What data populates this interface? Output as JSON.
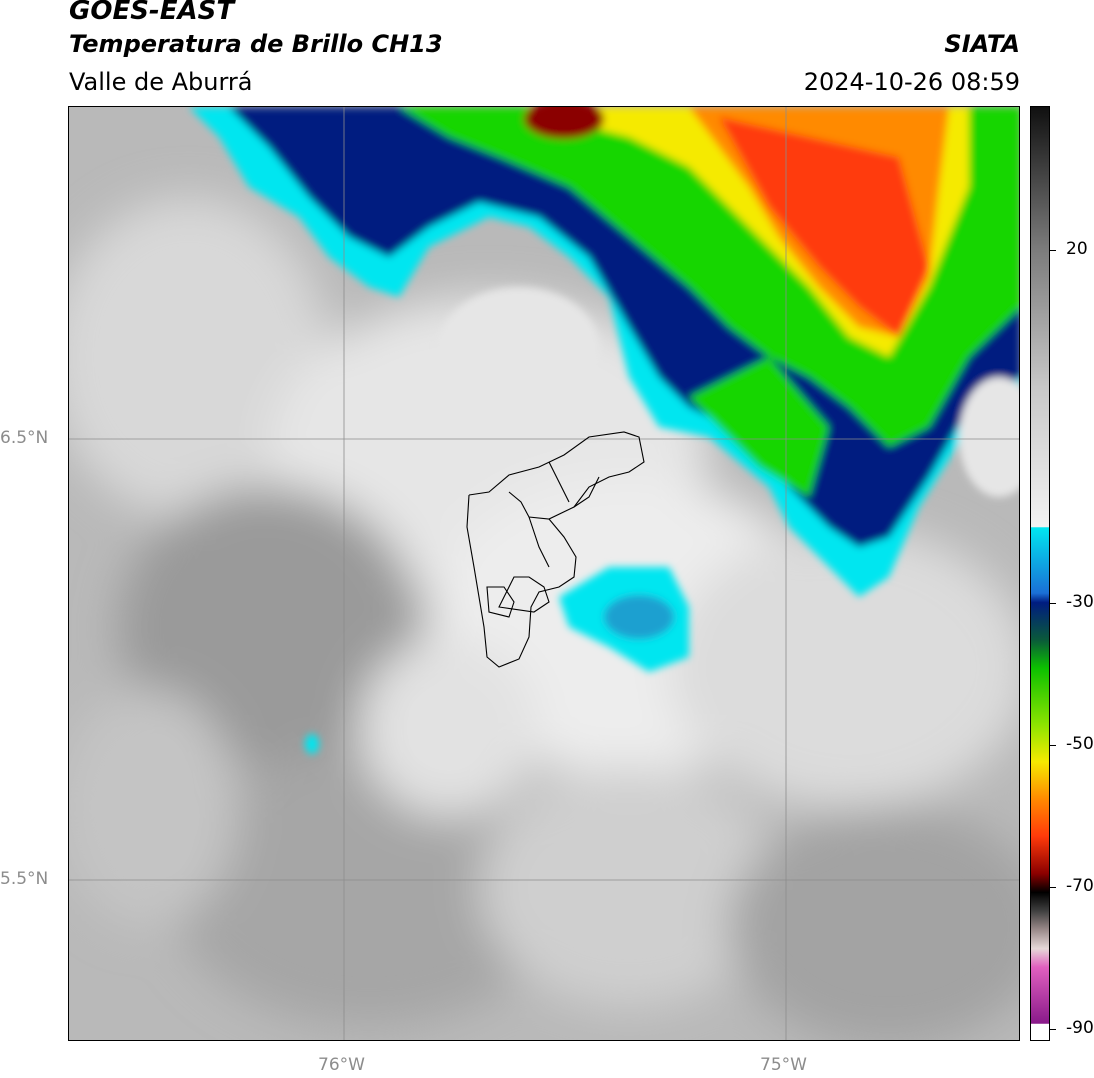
{
  "header": {
    "satellite": "GOES-EAST",
    "product": "Temperatura de Brillo CH13",
    "region": "Valle de Aburrá",
    "brand": "SIATA",
    "timestamp": "2024-10-26 08:59"
  },
  "map": {
    "gridlines": {
      "longitude_labels": [
        "76°W",
        "75°W"
      ],
      "latitude_labels": [
        "6.5°N",
        "5.5°N"
      ]
    }
  },
  "colorbar": {
    "tick_labels": [
      "20",
      "-30",
      "-50",
      "-70",
      "-90"
    ]
  },
  "colors": {
    "red": "#ff3a0a",
    "orange": "#ff8a00",
    "yellow": "#f5ea00",
    "green": "#18d600",
    "dark_blue": "#001c80",
    "cyan": "#00e6f0",
    "gray_light": "#ebebeb",
    "gray_dark": "#8a8a8a"
  }
}
